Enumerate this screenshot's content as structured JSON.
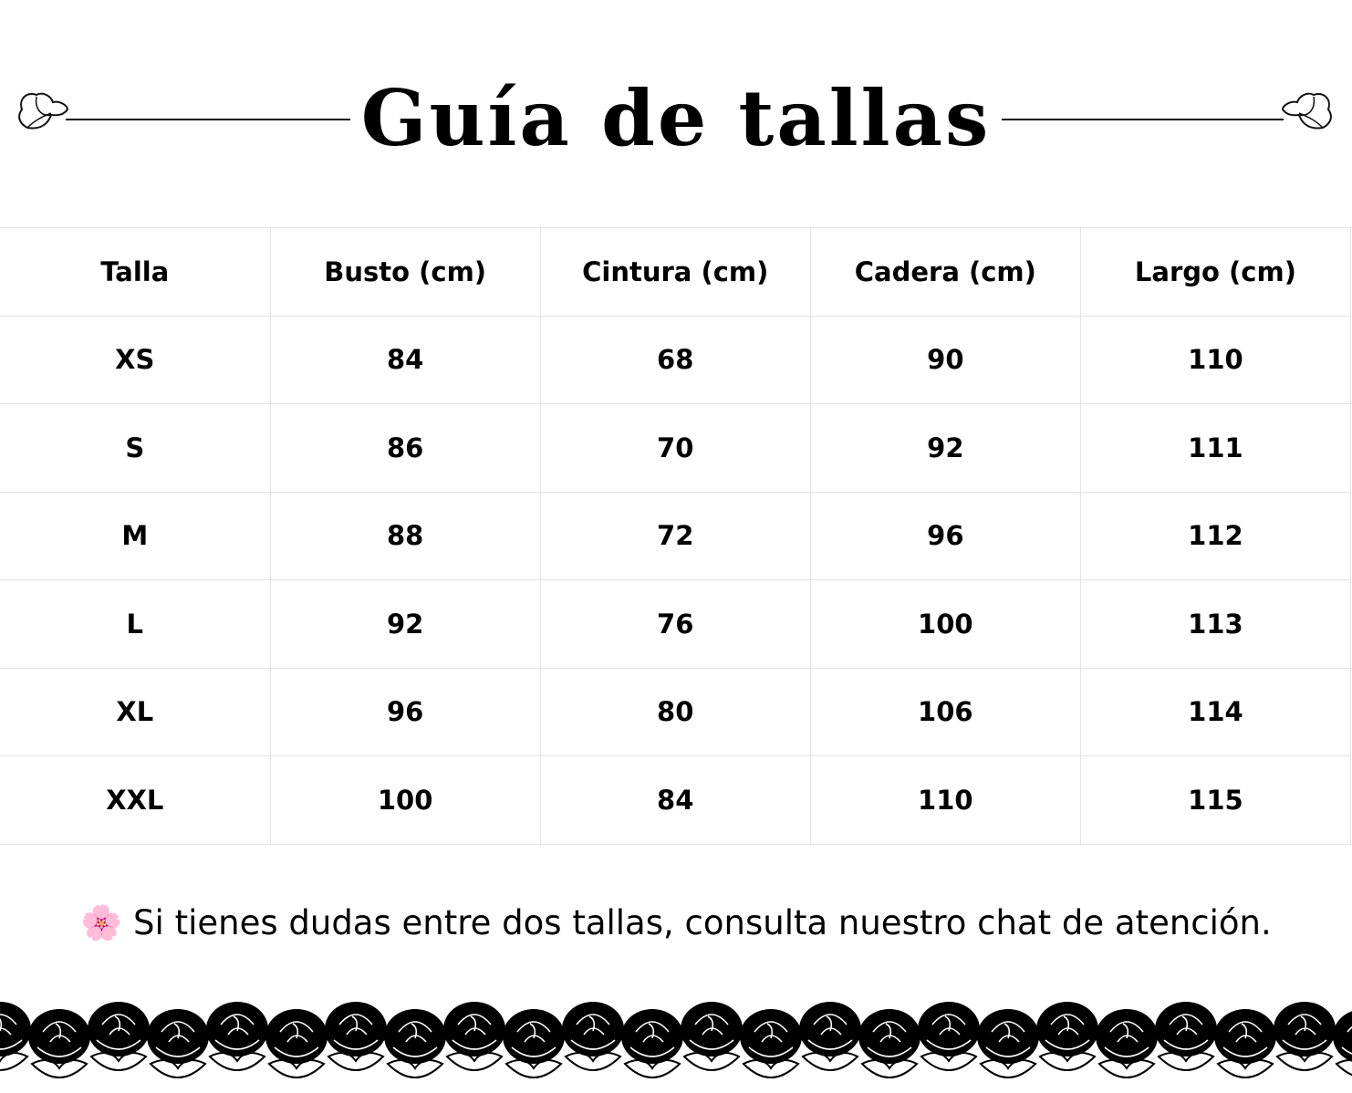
{
  "title": "Guía de tallas",
  "table": {
    "headers": [
      "Talla",
      "Busto (cm)",
      "Cintura (cm)",
      "Cadera (cm)",
      "Largo (cm)"
    ],
    "rows": [
      [
        "XS",
        "84",
        "68",
        "90",
        "110"
      ],
      [
        "S",
        "86",
        "70",
        "92",
        "111"
      ],
      [
        "M",
        "88",
        "72",
        "96",
        "112"
      ],
      [
        "L",
        "92",
        "76",
        "100",
        "113"
      ],
      [
        "XL",
        "96",
        "80",
        "106",
        "114"
      ],
      [
        "XXL",
        "100",
        "84",
        "110",
        "115"
      ]
    ]
  },
  "note": {
    "icon": "🌸",
    "text": "Si tienes dudas entre dos tallas, consulta nuestro chat de atención."
  }
}
